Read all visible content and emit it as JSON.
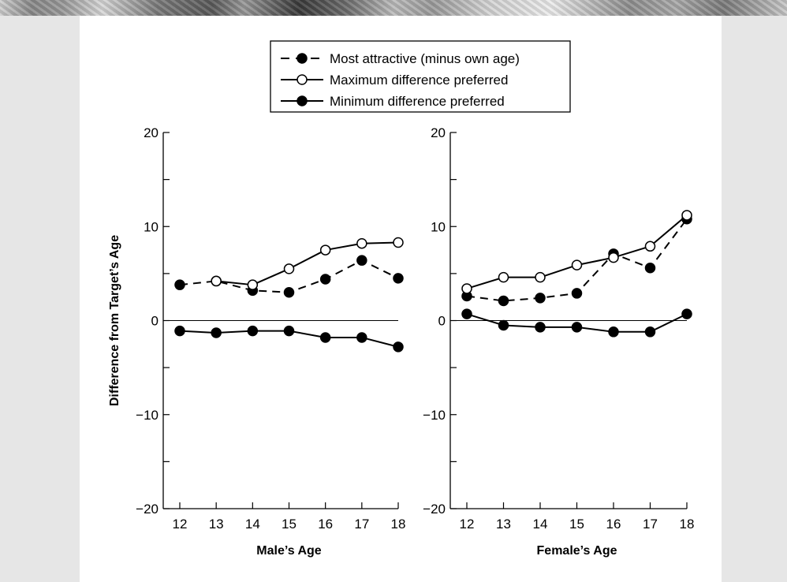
{
  "chart_data": [
    {
      "type": "line",
      "id": "male",
      "xlabel": "Male’s Age",
      "ylabel": "Difference from Target’s Age",
      "x": [
        12,
        13,
        14,
        15,
        16,
        17,
        18
      ],
      "ylim": [
        -20,
        20
      ],
      "yticks": [
        -20,
        -10,
        0,
        10,
        20
      ],
      "ytick_labels": [
        "−20",
        "−10",
        "0",
        "10",
        "20"
      ],
      "series": [
        {
          "name": "Most attractive (minus own age)",
          "style": "dashed-filled",
          "values": [
            3.8,
            4.2,
            3.2,
            3.0,
            4.4,
            6.4,
            4.5
          ]
        },
        {
          "name": "Maximum difference preferred",
          "style": "solid-open",
          "values": [
            null,
            4.2,
            3.8,
            5.5,
            7.5,
            8.2,
            8.3
          ]
        },
        {
          "name": "Minimum difference preferred",
          "style": "solid-filled",
          "values": [
            -1.1,
            -1.3,
            -1.1,
            -1.1,
            -1.8,
            -1.8,
            -2.8
          ]
        }
      ]
    },
    {
      "type": "line",
      "id": "female",
      "xlabel": "Female’s Age",
      "ylabel": "",
      "x": [
        12,
        13,
        14,
        15,
        16,
        17,
        18
      ],
      "ylim": [
        -20,
        20
      ],
      "yticks": [
        -20,
        -10,
        0,
        10,
        20
      ],
      "ytick_labels": [
        "−20",
        "−10",
        "0",
        "10",
        "20"
      ],
      "series": [
        {
          "name": "Most attractive (minus own age)",
          "style": "dashed-filled",
          "values": [
            2.6,
            2.1,
            2.4,
            2.9,
            7.1,
            5.6,
            10.8
          ]
        },
        {
          "name": "Maximum difference preferred",
          "style": "solid-open",
          "values": [
            3.4,
            4.6,
            4.6,
            5.9,
            6.7,
            7.9,
            11.2
          ]
        },
        {
          "name": "Minimum difference preferred",
          "style": "solid-filled",
          "values": [
            0.7,
            -0.5,
            -0.7,
            -0.7,
            -1.2,
            -1.2,
            0.7
          ]
        }
      ]
    }
  ],
  "legend": {
    "placement": "top-center",
    "entries": [
      {
        "label": "Most attractive (minus own age)",
        "style": "dashed-filled"
      },
      {
        "label": "Maximum difference preferred",
        "style": "solid-open"
      },
      {
        "label": "Minimum difference preferred",
        "style": "solid-filled"
      }
    ]
  },
  "colors": {
    "ink": "#000000",
    "panel": "#ffffff",
    "background": "#e6e6e6"
  }
}
